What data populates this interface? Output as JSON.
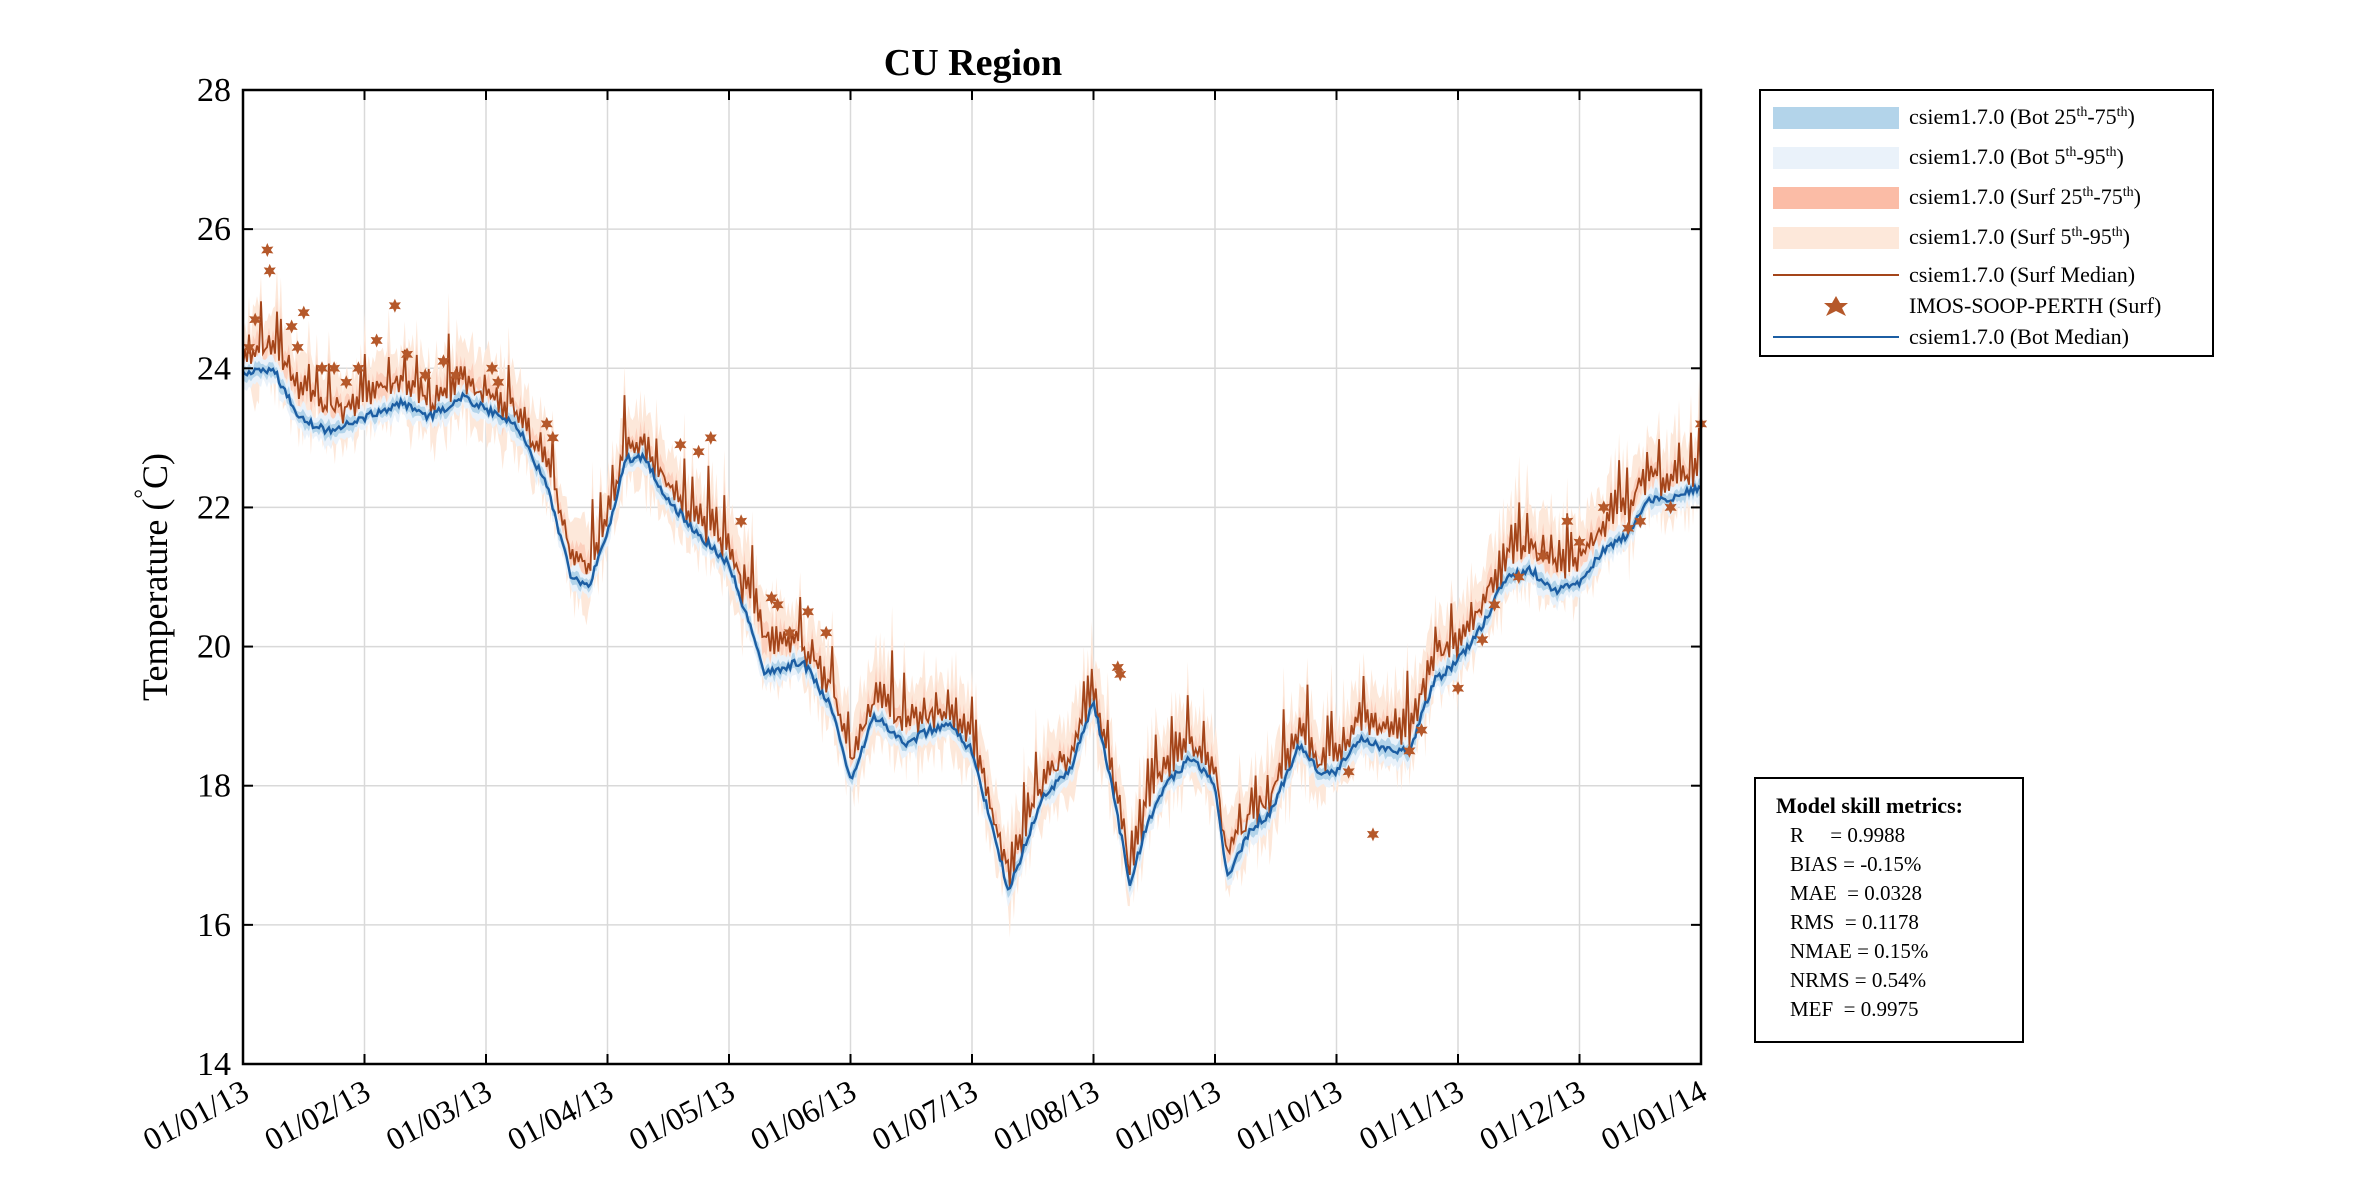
{
  "chart_data": {
    "type": "line",
    "title": "CU Region",
    "xlabel": "",
    "ylabel": "Temperature (",
    "ylabel_degree": "°",
    "ylabel_unit": "C)",
    "ylim": [
      14,
      28
    ],
    "yticks": [
      "14",
      "16",
      "18",
      "20",
      "22",
      "24",
      "26",
      "28"
    ],
    "xticks": [
      "01/01/13",
      "01/02/13",
      "01/03/13",
      "01/04/13",
      "01/05/13",
      "01/06/13",
      "01/07/13",
      "01/08/13",
      "01/09/13",
      "01/10/13",
      "01/11/13",
      "01/12/13",
      "01/01/14"
    ],
    "grid": true,
    "legend_position": "outside-top-right",
    "colors": {
      "bot_25_75": "#b3d4ea",
      "bot_5_95": "#eaf2fa",
      "surf_25_75": "#fbbca6",
      "surf_5_95": "#fde8da",
      "surf_median": "#a4451a",
      "obs": "#b5582a",
      "bot_median": "#1c5ea3"
    },
    "series": [
      {
        "name": "csiem1.7.0 (Surf Median)",
        "month_index": [
          0,
          0.25,
          0.45,
          0.7,
          1.0,
          1.3,
          1.55,
          1.8,
          2.0,
          2.25,
          2.5,
          2.7,
          2.85,
          3.0,
          3.15,
          3.3,
          3.5,
          3.75,
          4.0,
          4.3,
          4.6,
          4.85,
          5.0,
          5.2,
          5.45,
          5.65,
          5.8,
          6.0,
          6.3,
          6.6,
          6.8,
          7.0,
          7.15,
          7.3,
          7.45,
          7.6,
          7.8,
          8.0,
          8.1,
          8.3,
          8.45,
          8.7,
          8.85,
          9.0,
          9.2,
          9.4,
          9.6,
          9.8,
          10.0,
          10.2,
          10.4,
          10.6,
          10.8,
          11.0,
          11.2,
          11.4,
          11.55,
          11.7,
          11.85,
          12.0
        ],
        "values": [
          24.1,
          24.3,
          23.7,
          23.4,
          23.6,
          23.8,
          23.5,
          23.9,
          23.6,
          23.4,
          22.6,
          21.3,
          21.1,
          21.8,
          22.9,
          22.9,
          22.3,
          21.8,
          21.4,
          20.1,
          20.0,
          19.4,
          18.3,
          19.3,
          18.9,
          19.0,
          19.1,
          18.7,
          16.8,
          18.1,
          18.4,
          19.3,
          18.2,
          16.8,
          17.8,
          18.3,
          18.6,
          18.2,
          17.0,
          17.6,
          17.8,
          18.8,
          18.3,
          18.4,
          18.9,
          18.8,
          18.8,
          19.8,
          20.1,
          20.6,
          21.3,
          21.4,
          21.1,
          21.2,
          21.7,
          22.0,
          22.5,
          22.3,
          22.4,
          22.5
        ]
      },
      {
        "name": "csiem1.7.0 (Bot Median)",
        "month_index": [
          0,
          0.25,
          0.45,
          0.7,
          1.0,
          1.3,
          1.55,
          1.8,
          2.0,
          2.25,
          2.5,
          2.7,
          2.85,
          3.0,
          3.15,
          3.3,
          3.5,
          3.75,
          4.0,
          4.3,
          4.6,
          4.85,
          5.0,
          5.2,
          5.45,
          5.65,
          5.8,
          6.0,
          6.3,
          6.6,
          6.8,
          7.0,
          7.15,
          7.3,
          7.45,
          7.6,
          7.8,
          8.0,
          8.1,
          8.3,
          8.45,
          8.7,
          8.85,
          9.0,
          9.2,
          9.4,
          9.6,
          9.8,
          10.0,
          10.2,
          10.4,
          10.6,
          10.8,
          11.0,
          11.2,
          11.4,
          11.55,
          11.7,
          11.85,
          12.0
        ],
        "values": [
          23.9,
          24.0,
          23.3,
          23.1,
          23.3,
          23.5,
          23.3,
          23.6,
          23.4,
          23.2,
          22.3,
          21.0,
          20.9,
          21.6,
          22.7,
          22.7,
          22.1,
          21.6,
          21.2,
          19.6,
          19.8,
          19.1,
          18.1,
          19.0,
          18.6,
          18.8,
          18.9,
          18.5,
          16.5,
          17.9,
          18.2,
          19.2,
          18.0,
          16.6,
          17.5,
          18.0,
          18.4,
          18.0,
          16.7,
          17.4,
          17.6,
          18.6,
          18.2,
          18.2,
          18.7,
          18.5,
          18.5,
          19.5,
          19.8,
          20.3,
          21.0,
          21.1,
          20.8,
          20.9,
          21.4,
          21.6,
          22.1,
          22.1,
          22.2,
          22.3
        ]
      },
      {
        "name": "IMOS-SOOP-PERTH (Surf)",
        "month_index": [
          0.05,
          0.1,
          0.2,
          0.22,
          0.4,
          0.45,
          0.5,
          0.65,
          0.75,
          0.85,
          0.95,
          1.1,
          1.25,
          1.35,
          1.5,
          1.65,
          1.75,
          2.05,
          2.1,
          2.5,
          2.55,
          3.6,
          3.75,
          3.85,
          4.1,
          4.35,
          4.4,
          4.5,
          4.65,
          4.8,
          7.2,
          7.22,
          9.1,
          9.3,
          9.6,
          9.7,
          10.0,
          10.2,
          10.3,
          10.5,
          10.7,
          10.9,
          11.0,
          11.2,
          11.4,
          11.5,
          11.75,
          12.0
        ],
        "values": [
          24.3,
          24.7,
          25.7,
          25.4,
          24.6,
          24.3,
          24.8,
          24.0,
          24.0,
          23.8,
          24.0,
          24.4,
          24.9,
          24.2,
          23.9,
          24.1,
          23.9,
          24.0,
          23.8,
          23.2,
          23.0,
          22.9,
          22.8,
          23.0,
          21.8,
          20.7,
          20.6,
          20.2,
          20.5,
          20.2,
          19.7,
          19.6,
          18.2,
          17.3,
          18.5,
          18.8,
          19.4,
          20.1,
          20.6,
          21.0,
          21.3,
          21.8,
          21.5,
          22.0,
          21.7,
          21.8,
          22.0,
          23.2
        ]
      }
    ]
  },
  "legend": {
    "items": [
      {
        "label": "csiem1.7.0 (Bot 25",
        "sup1": "th",
        "mid": "-75",
        "sup2": "th",
        "end": ")"
      },
      {
        "label": "csiem1.7.0 (Bot 5",
        "sup1": "th",
        "mid": "-95",
        "sup2": "th",
        "end": ")"
      },
      {
        "label": "csiem1.7.0 (Surf 25",
        "sup1": "th",
        "mid": "-75",
        "sup2": "th",
        "end": ")"
      },
      {
        "label": "csiem1.7.0 (Surf 5",
        "sup1": "th",
        "mid": "-95",
        "sup2": "th",
        "end": ")"
      },
      {
        "label": "csiem1.7.0 (Surf Median)"
      },
      {
        "label": "IMOS-SOOP-PERTH (Surf)"
      },
      {
        "label": "csiem1.7.0 (Bot Median)"
      }
    ]
  },
  "metrics": {
    "title": "Model skill metrics:",
    "lines": [
      "R     = 0.9988",
      "BIAS = -0.15%",
      "MAE  = 0.0328",
      "RMS  = 0.1178",
      "NMAE = 0.15%",
      "NRMS = 0.54%",
      "MEF  = 0.9975"
    ]
  }
}
